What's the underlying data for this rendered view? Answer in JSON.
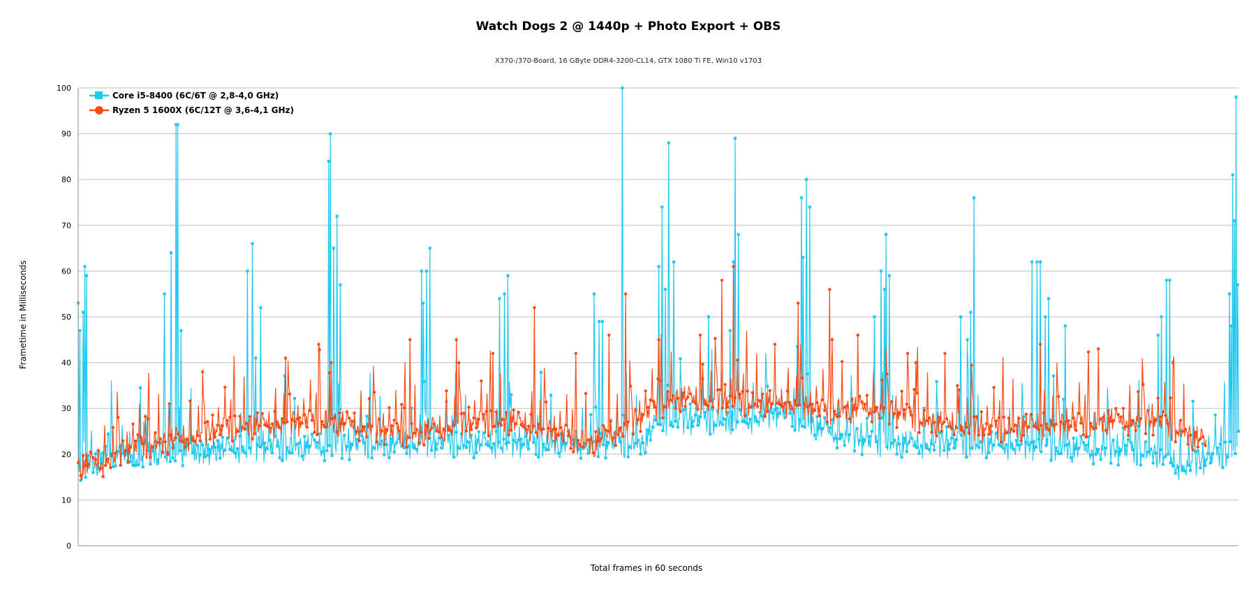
{
  "chart_data": {
    "type": "line",
    "title": "Watch Dogs 2 @ 1440p + Photo Export + OBS",
    "subtitle": "X370-/370-Board, 16 GByte DDR4-3200-CL14, GTX 1080 Ti FE, Win10 v1703",
    "xlabel": "Total frames in 60 seconds",
    "ylabel": "Frametime in Milliseconds",
    "ylim": [
      0,
      100
    ],
    "yticks": [
      0,
      10,
      20,
      30,
      40,
      50,
      60,
      70,
      80,
      90,
      100
    ],
    "grid": true,
    "legend_position": "top-left",
    "frame_count": 1400,
    "series": [
      {
        "name": "Core i5-8400 (6C/6T @ 2,8-4,0 GHz)",
        "color": "#1fc8ef",
        "marker": "square",
        "baseline": [
          [
            0,
            17
          ],
          [
            20,
            18
          ],
          [
            60,
            20
          ],
          [
            200,
            21
          ],
          [
            400,
            22
          ],
          [
            600,
            22
          ],
          [
            680,
            22
          ],
          [
            700,
            27
          ],
          [
            800,
            27
          ],
          [
            850,
            29
          ],
          [
            900,
            25
          ],
          [
            960,
            22
          ],
          [
            1100,
            22
          ],
          [
            1200,
            21
          ],
          [
            1300,
            20
          ],
          [
            1330,
            17
          ],
          [
            1370,
            19
          ],
          [
            1400,
            21
          ]
        ],
        "spikes": [
          [
            0,
            53
          ],
          [
            2,
            47
          ],
          [
            6,
            51
          ],
          [
            8,
            61
          ],
          [
            10,
            59
          ],
          [
            104,
            55
          ],
          [
            112,
            64
          ],
          [
            118,
            92
          ],
          [
            120,
            92
          ],
          [
            124,
            47
          ],
          [
            204,
            60
          ],
          [
            210,
            66
          ],
          [
            214,
            41
          ],
          [
            220,
            52
          ],
          [
            302,
            84
          ],
          [
            304,
            90
          ],
          [
            308,
            65
          ],
          [
            312,
            72
          ],
          [
            316,
            57
          ],
          [
            414,
            60
          ],
          [
            416,
            53
          ],
          [
            420,
            60
          ],
          [
            424,
            65
          ],
          [
            508,
            54
          ],
          [
            514,
            55
          ],
          [
            518,
            59
          ],
          [
            522,
            33
          ],
          [
            622,
            55
          ],
          [
            628,
            49
          ],
          [
            632,
            49
          ],
          [
            656,
            100
          ],
          [
            700,
            61
          ],
          [
            704,
            74
          ],
          [
            708,
            56
          ],
          [
            712,
            88
          ],
          [
            718,
            62
          ],
          [
            760,
            50
          ],
          [
            786,
            47
          ],
          [
            790,
            62
          ],
          [
            792,
            89
          ],
          [
            796,
            68
          ],
          [
            872,
            76
          ],
          [
            874,
            63
          ],
          [
            878,
            80
          ],
          [
            882,
            74
          ],
          [
            960,
            50
          ],
          [
            968,
            60
          ],
          [
            972,
            56
          ],
          [
            974,
            68
          ],
          [
            978,
            59
          ],
          [
            1064,
            50
          ],
          [
            1072,
            45
          ],
          [
            1076,
            51
          ],
          [
            1080,
            76
          ],
          [
            1150,
            62
          ],
          [
            1156,
            62
          ],
          [
            1160,
            62
          ],
          [
            1166,
            50
          ],
          [
            1170,
            54
          ],
          [
            1190,
            48
          ],
          [
            1302,
            46
          ],
          [
            1306,
            50
          ],
          [
            1312,
            58
          ],
          [
            1316,
            58
          ],
          [
            1388,
            55
          ],
          [
            1390,
            48
          ],
          [
            1392,
            81
          ],
          [
            1394,
            71
          ],
          [
            1396,
            98
          ],
          [
            1398,
            57
          ],
          [
            1399,
            25
          ]
        ]
      },
      {
        "name": "Ryzen 5 1600X (6C/12T @ 3,6-4,1 GHz)",
        "color": "#fc4a14",
        "marker": "circle",
        "baseline": [
          [
            0,
            17
          ],
          [
            30,
            18
          ],
          [
            60,
            21
          ],
          [
            120,
            23
          ],
          [
            200,
            26
          ],
          [
            300,
            27
          ],
          [
            400,
            24
          ],
          [
            450,
            26
          ],
          [
            520,
            27
          ],
          [
            580,
            24
          ],
          [
            620,
            22
          ],
          [
            680,
            28
          ],
          [
            720,
            32
          ],
          [
            800,
            31
          ],
          [
            850,
            31
          ],
          [
            900,
            29
          ],
          [
            960,
            30
          ],
          [
            1020,
            27
          ],
          [
            1060,
            26
          ],
          [
            1100,
            25
          ],
          [
            1150,
            26
          ],
          [
            1200,
            26
          ],
          [
            1240,
            27
          ],
          [
            1300,
            27
          ],
          [
            1340,
            24
          ],
          [
            1360,
            22
          ]
        ],
        "spikes": [
          [
            110,
            31
          ],
          [
            250,
            41
          ],
          [
            290,
            44
          ],
          [
            305,
            40
          ],
          [
            400,
            45
          ],
          [
            456,
            45
          ],
          [
            500,
            42
          ],
          [
            550,
            52
          ],
          [
            600,
            42
          ],
          [
            640,
            46
          ],
          [
            660,
            55
          ],
          [
            700,
            45
          ],
          [
            750,
            46
          ],
          [
            776,
            58
          ],
          [
            790,
            61
          ],
          [
            840,
            44
          ],
          [
            868,
            53
          ],
          [
            906,
            56
          ],
          [
            940,
            46
          ],
          [
            1000,
            42
          ],
          [
            1010,
            40
          ],
          [
            1045,
            42
          ],
          [
            1060,
            35
          ],
          [
            1160,
            44
          ],
          [
            1230,
            43
          ],
          [
            1320,
            40
          ]
        ]
      }
    ]
  }
}
